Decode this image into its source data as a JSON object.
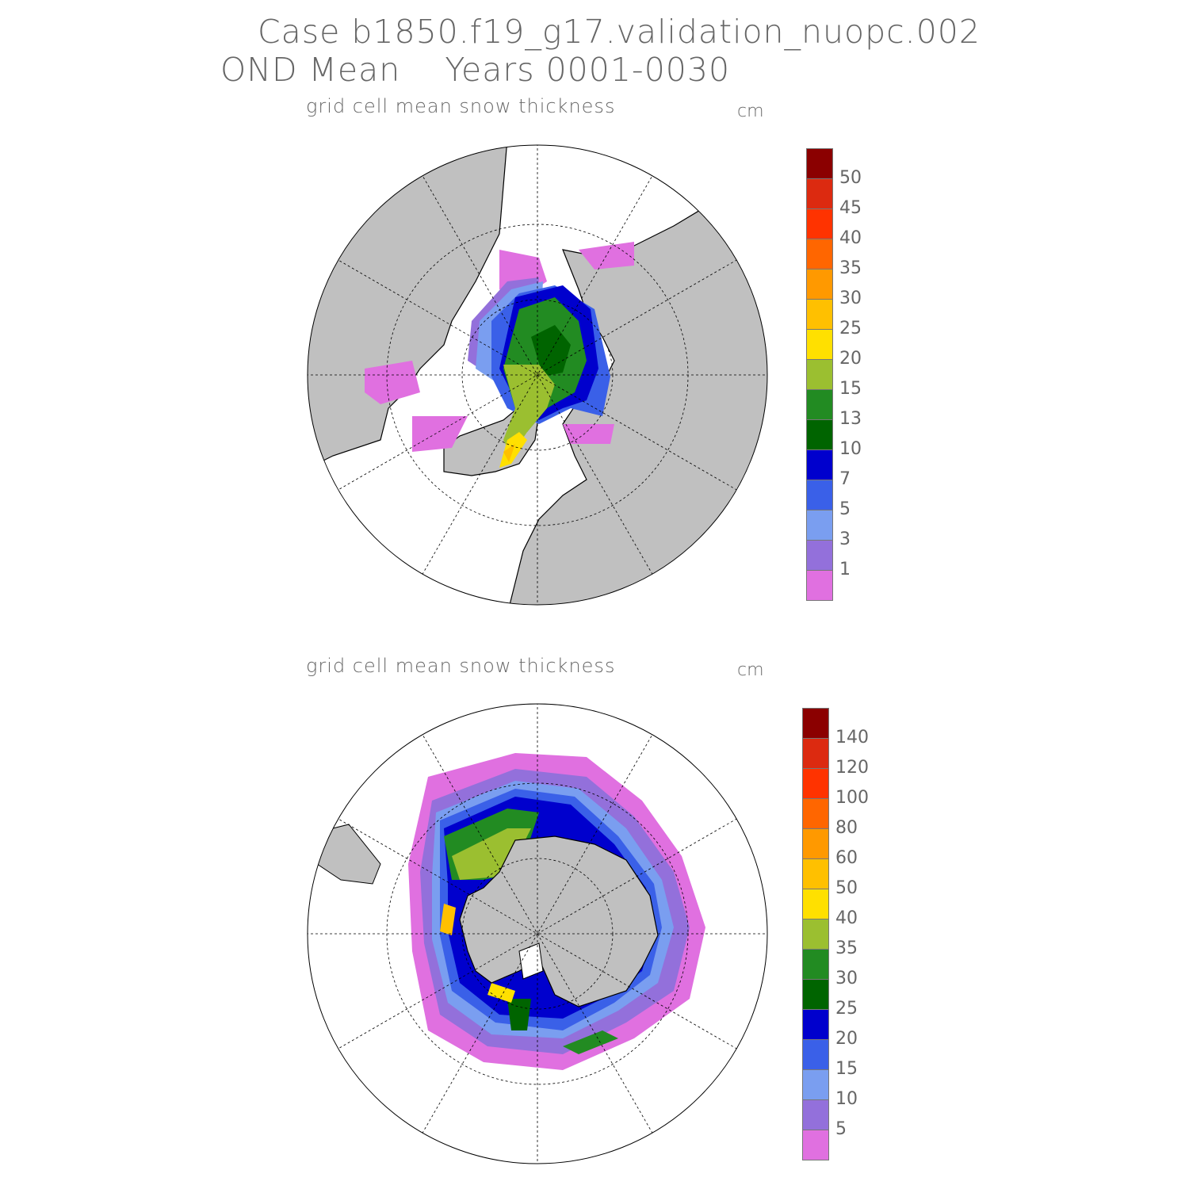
{
  "header": {
    "case_title": "Case b1850.f19_g17.validation_nuopc.002",
    "subtitle": "OND Mean    Years 0001-0030"
  },
  "north_panel": {
    "title": "grid cell mean snow thickness",
    "unit": "cm",
    "colorbar_labels": [
      "50",
      "45",
      "40",
      "35",
      "30",
      "25",
      "20",
      "15",
      "13",
      "10",
      "7",
      "5",
      "3",
      "1"
    ]
  },
  "south_panel": {
    "title": "grid cell mean snow thickness",
    "unit": "cm",
    "colorbar_labels": [
      "140",
      "120",
      "100",
      "80",
      "60",
      "50",
      "40",
      "35",
      "30",
      "25",
      "20",
      "15",
      "10",
      "5"
    ]
  },
  "palette": [
    "#8b0000",
    "#dc2a10",
    "#ff3300",
    "#ff6600",
    "#ff9900",
    "#ffc000",
    "#ffe000",
    "#9bbf30",
    "#228b22",
    "#006400",
    "#0000cd",
    "#3a60e8",
    "#7a9ef0",
    "#9370db",
    "#e070e0"
  ],
  "land_color": "#c0c0c0"
}
